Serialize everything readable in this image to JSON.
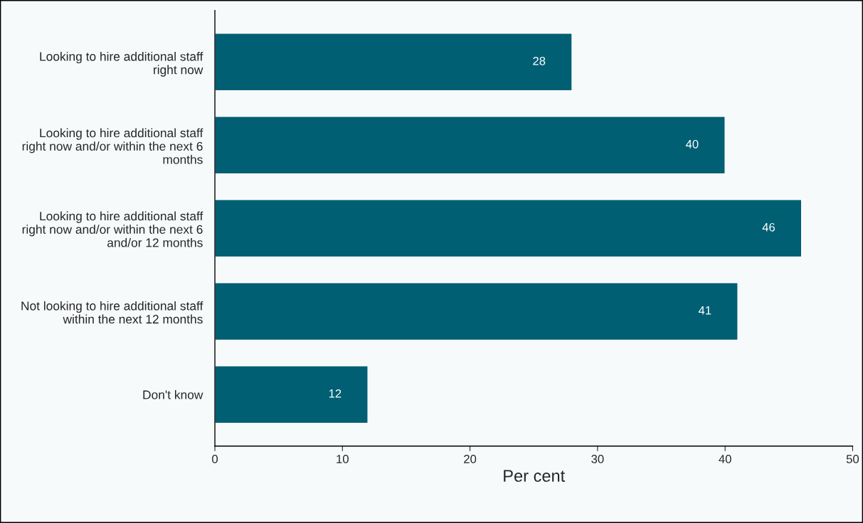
{
  "chart_data": {
    "type": "bar",
    "orientation": "horizontal",
    "xlabel": "Per cent",
    "categories": [
      "Looking to hire additional staff\nright now",
      "Looking to hire additional staff\nright now and/or within the next 6\nmonths",
      "Looking to hire additional staff\nright now and/or within the next 6\nand/or 12 months",
      "Not looking to hire additional staff\nwithin the next 12 months",
      "Don't know"
    ],
    "values": [
      28,
      40,
      46,
      41,
      12
    ],
    "color": "#005f73",
    "xlim": [
      0,
      50
    ],
    "xticks": [
      0,
      10,
      20,
      30,
      40,
      50
    ],
    "grid": false,
    "data_labels": true
  }
}
